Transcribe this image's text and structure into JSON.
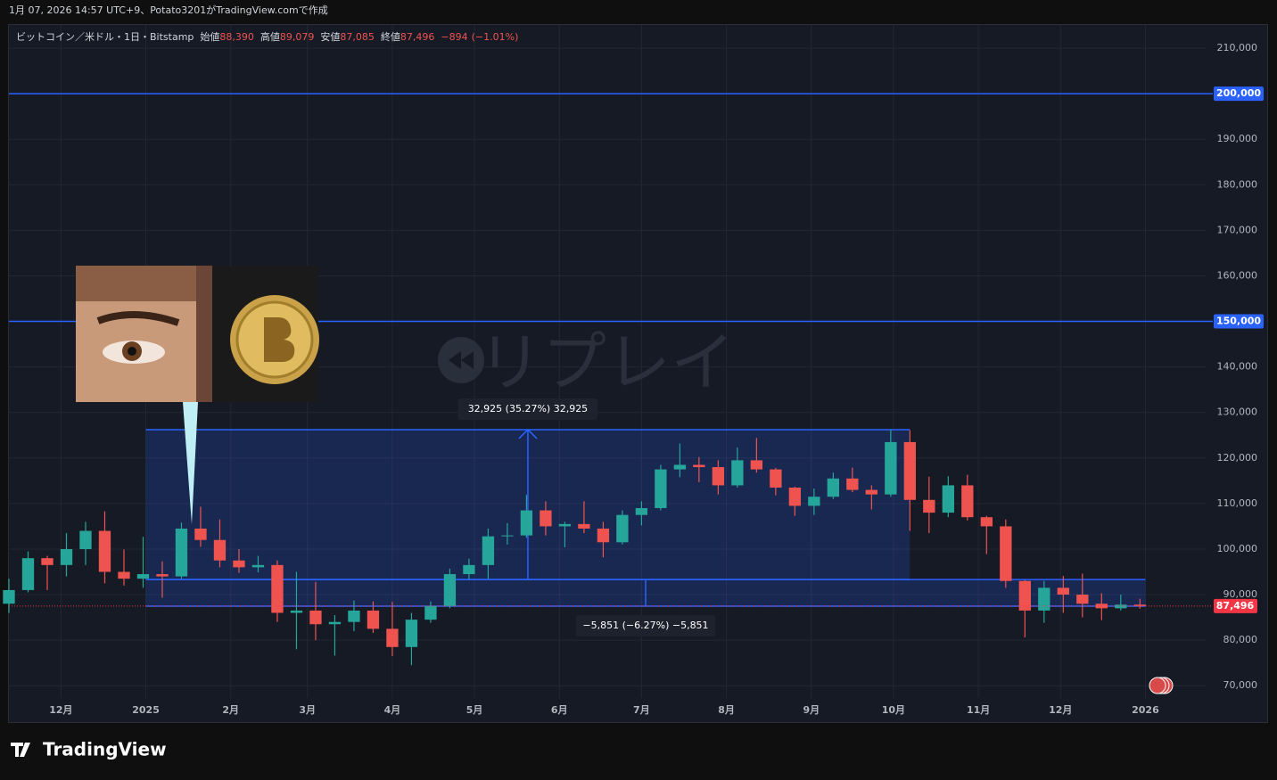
{
  "caption": "1月 07, 2026 14:57 UTC+9、Potato3201がTradingView.comで作成",
  "brand": "TradingView",
  "chart_data": {
    "type": "candlestick",
    "symbol": "ビットコイン／米ドル・1日・Bitstamp",
    "ohlc_names": [
      "始値",
      "高値",
      "安値",
      "終値"
    ],
    "ohlc_values": [
      {
        "value": 88390,
        "label": "88,390"
      },
      {
        "value": 89079,
        "label": "89,079"
      },
      {
        "value": 87085,
        "label": "87,085"
      },
      {
        "value": 87496,
        "label": "87,496"
      }
    ],
    "change": {
      "value": -894,
      "label": "−894"
    },
    "change_pct": {
      "value": -1.01,
      "label": "(−1.01%)"
    },
    "watermark": "リプレイ",
    "up_color": "#26a69a",
    "down_color": "#ef5350",
    "xlim": [
      0,
      437
    ],
    "ylim": [
      67300,
      215100
    ],
    "xticks": [
      {
        "value": 19,
        "label": "12月"
      },
      {
        "value": 50,
        "label": "2025"
      },
      {
        "value": 81,
        "label": "2月"
      },
      {
        "value": 109,
        "label": "3月"
      },
      {
        "value": 140,
        "label": "4月"
      },
      {
        "value": 170,
        "label": "5月"
      },
      {
        "value": 201,
        "label": "6月"
      },
      {
        "value": 231,
        "label": "7月"
      },
      {
        "value": 262,
        "label": "8月"
      },
      {
        "value": 293,
        "label": "9月"
      },
      {
        "value": 323,
        "label": "10月"
      },
      {
        "value": 354,
        "label": "11月"
      },
      {
        "value": 384,
        "label": "12月"
      },
      {
        "value": 415,
        "label": "2026"
      }
    ],
    "yticks": [
      {
        "value": 70000,
        "label": "70,000"
      },
      {
        "value": 80000,
        "label": "80,000"
      },
      {
        "value": 90000,
        "label": "90,000"
      },
      {
        "value": 100000,
        "label": "100,000"
      },
      {
        "value": 110000,
        "label": "110,000"
      },
      {
        "value": 120000,
        "label": "120,000"
      },
      {
        "value": 130000,
        "label": "130,000"
      },
      {
        "value": 140000,
        "label": "140,000"
      },
      {
        "value": 150000,
        "label": "150,000"
      },
      {
        "value": 160000,
        "label": "160,000"
      },
      {
        "value": 170000,
        "label": "170,000"
      },
      {
        "value": 180000,
        "label": "180,000"
      },
      {
        "value": 190000,
        "label": "190,000"
      },
      {
        "value": 200000,
        "label": "200,000"
      },
      {
        "value": 210000,
        "label": "210,000"
      }
    ],
    "grid": true,
    "x": [
      0,
      7,
      14,
      21,
      28,
      35,
      42,
      49,
      56,
      63,
      70,
      77,
      84,
      91,
      98,
      105,
      112,
      119,
      126,
      133,
      140,
      147,
      154,
      161,
      168,
      175,
      182,
      189,
      196,
      203,
      210,
      217,
      224,
      231,
      238,
      245,
      252,
      259,
      266,
      273,
      280,
      287,
      294,
      301,
      308,
      315,
      322,
      329,
      336,
      343,
      350,
      357,
      364,
      371,
      378,
      385,
      392,
      399,
      406,
      413
    ],
    "open": [
      88000,
      91000,
      98000,
      96500,
      100000,
      104000,
      95000,
      93500,
      94500,
      94000,
      104500,
      102000,
      97500,
      96000,
      96500,
      86000,
      86500,
      83500,
      84000,
      86500,
      82500,
      78500,
      84500,
      87500,
      94500,
      96500,
      102800,
      103000,
      108500,
      105000,
      105500,
      104500,
      101500,
      107500,
      109000,
      117500,
      118500,
      118000,
      114000,
      119500,
      117500,
      113500,
      109500,
      111500,
      115500,
      113000,
      112000,
      123500,
      110800,
      108000,
      114000,
      107000,
      105000,
      93000,
      86500,
      91500,
      90000,
      88000,
      87000,
      87800
    ],
    "high": [
      93500,
      99500,
      98500,
      103500,
      106000,
      108300,
      99900,
      102700,
      97300,
      105800,
      109300,
      106500,
      100000,
      98500,
      97500,
      95000,
      92800,
      85500,
      88700,
      88500,
      88400,
      86000,
      88500,
      95700,
      97900,
      104500,
      105700,
      111900,
      110500,
      106000,
      110500,
      106000,
      108500,
      110500,
      118500,
      123200,
      120200,
      119500,
      122300,
      124400,
      117800,
      113700,
      113300,
      116800,
      117900,
      114000,
      126200,
      126100,
      115900,
      116000,
      116300,
      107300,
      106500,
      93200,
      93000,
      94100,
      94600,
      90300,
      90000,
      89100
    ],
    "low": [
      86000,
      90500,
      91000,
      94000,
      96500,
      92500,
      92000,
      91500,
      89300,
      93500,
      100500,
      96000,
      94800,
      94900,
      84000,
      78000,
      80000,
      76600,
      82000,
      81600,
      76500,
      74500,
      83800,
      87000,
      93300,
      93500,
      101000,
      102500,
      103000,
      100400,
      103500,
      98200,
      101000,
      105200,
      108500,
      115800,
      114700,
      112000,
      113500,
      116800,
      111800,
      107300,
      107500,
      111000,
      112500,
      108700,
      111500,
      104000,
      103500,
      107000,
      106300,
      98900,
      91500,
      80600,
      83800,
      86000,
      85000,
      84400,
      86500,
      86900
    ],
    "close": [
      91000,
      98000,
      96500,
      100000,
      104000,
      95000,
      93500,
      94500,
      94000,
      104500,
      102000,
      97500,
      96000,
      96500,
      86000,
      86500,
      83500,
      84000,
      86500,
      82500,
      78500,
      84500,
      87500,
      94500,
      96500,
      102800,
      103000,
      108500,
      105000,
      105500,
      104500,
      101500,
      107500,
      109000,
      117500,
      118500,
      118000,
      114000,
      119500,
      117500,
      113500,
      109500,
      111500,
      115500,
      113000,
      112000,
      123500,
      110800,
      108000,
      114000,
      107000,
      105000,
      93000,
      86500,
      91500,
      90000,
      88000,
      87000,
      87800,
      87496
    ],
    "hlines": [
      {
        "value": 200000,
        "label": "200,000",
        "color": "#2962ff"
      },
      {
        "value": 150000,
        "label": "150,000",
        "color": "#2962ff"
      }
    ],
    "last_price": {
      "value": 87496,
      "label": "87,496",
      "color": "#f23645"
    },
    "measures": [
      {
        "label": "32,925 (35.27%) 32,925",
        "from": 93311,
        "to": 126236,
        "x0": 50,
        "x1": 329
      },
      {
        "label": "−5,851 (−6.27%) −5,851",
        "from": 93311,
        "to": 87460,
        "x0": 50,
        "x1": 415
      }
    ]
  }
}
